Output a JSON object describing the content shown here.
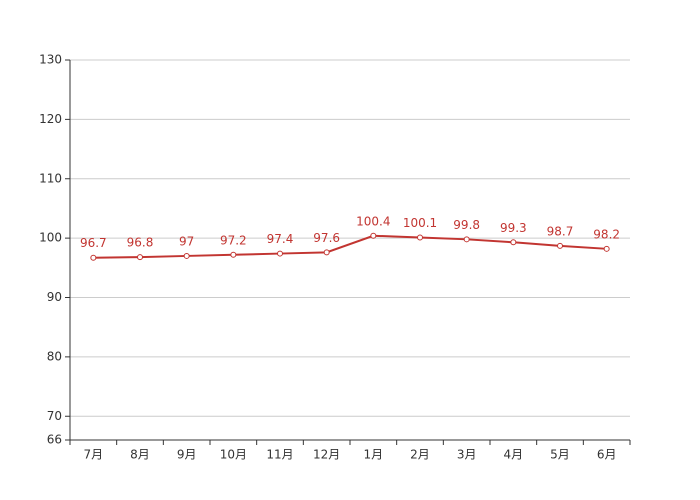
{
  "chart_data": {
    "type": "line",
    "categories": [
      "7月",
      "8月",
      "9月",
      "10月",
      "11月",
      "12月",
      "1月",
      "2月",
      "3月",
      "4月",
      "5月",
      "6月"
    ],
    "series": [
      {
        "color": "#c23531",
        "values": [
          96.7,
          96.8,
          97,
          97.2,
          97.4,
          97.6,
          100.4,
          100.1,
          99.8,
          99.3,
          98.7,
          98.2
        ]
      }
    ],
    "ylim": [
      66,
      130
    ],
    "yticks": [
      66,
      70,
      80,
      90,
      100,
      110,
      120,
      130
    ],
    "grid": true
  }
}
